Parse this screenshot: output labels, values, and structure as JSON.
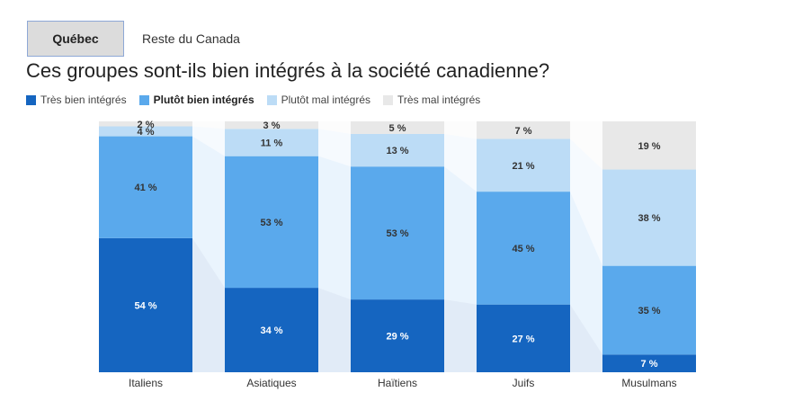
{
  "tabs": [
    {
      "label": "Québec",
      "active": true
    },
    {
      "label": "Reste du Canada",
      "active": false
    }
  ],
  "chart_data": {
    "type": "bar",
    "stacked": true,
    "title": "Ces groupes sont-ils bien intégrés à la société canadienne?",
    "categories": [
      "Italiens",
      "Asiatiques",
      "Haïtiens",
      "Juifs",
      "Musulmans"
    ],
    "series": [
      {
        "name": "Très bien intégrés",
        "color": "#1565c0",
        "values": [
          54,
          34,
          29,
          27,
          7
        ]
      },
      {
        "name": "Plutôt bien intégrés",
        "color": "#5aa9ec",
        "values": [
          41,
          53,
          53,
          45,
          35
        ]
      },
      {
        "name": "Plutôt mal intégrés",
        "color": "#bcdcf6",
        "values": [
          4,
          11,
          13,
          21,
          38
        ]
      },
      {
        "name": "Très mal intégrés",
        "color": "#e8e8e8",
        "values": [
          2,
          3,
          5,
          7,
          19
        ]
      }
    ],
    "value_suffix": " %",
    "legend_position": "top-left",
    "highlighted_legend_item": "Plutôt bien intégrés"
  }
}
